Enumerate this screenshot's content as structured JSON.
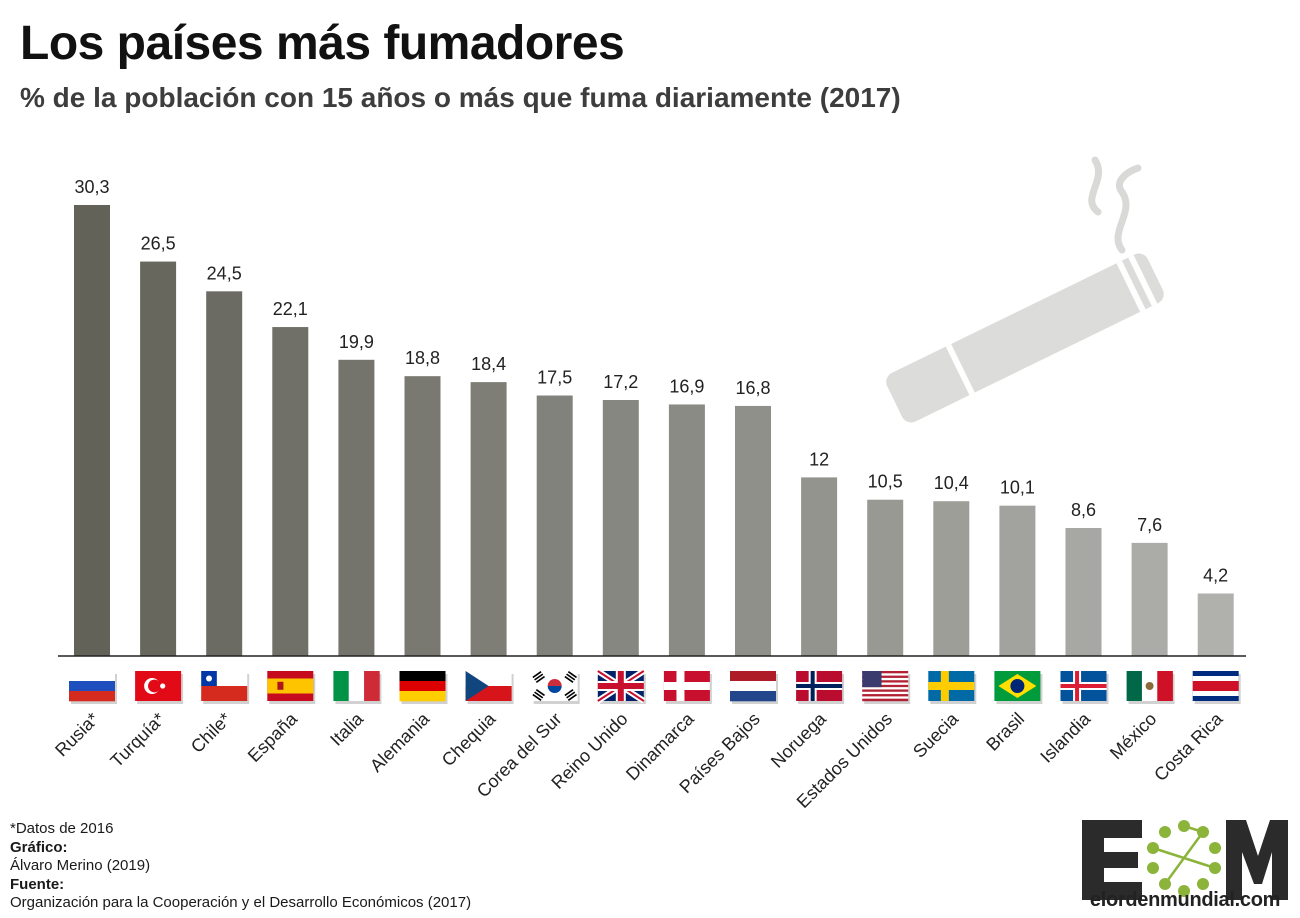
{
  "title": "Los países más fumadores",
  "subtitle": "% de la población con 15 años o más que fuma diariamente (2017)",
  "chart_data": {
    "type": "bar",
    "categories": [
      "Rusia*",
      "Turquía*",
      "Chile*",
      "España",
      "Italia",
      "Alemania",
      "Chequia",
      "Corea del Sur",
      "Reino Unido",
      "Dinamarca",
      "Países Bajos",
      "Noruega",
      "Estados Unidos",
      "Suecia",
      "Brasil",
      "Islandia",
      "México",
      "Costa Rica"
    ],
    "values": [
      30.3,
      26.5,
      24.5,
      22.1,
      19.9,
      18.8,
      18.4,
      17.5,
      17.2,
      16.9,
      16.8,
      12,
      10.5,
      10.4,
      10.1,
      8.6,
      7.6,
      4.2
    ],
    "value_labels": [
      "30,3",
      "26,5",
      "24,5",
      "22,1",
      "19,9",
      "18,8",
      "18,4",
      "17,5",
      "17,2",
      "16,9",
      "16,8",
      "12",
      "10,5",
      "10,4",
      "10,1",
      "8,6",
      "7,6",
      "4,2"
    ],
    "flags": [
      "russia-flag",
      "turkey-flag",
      "chile-flag",
      "spain-flag",
      "italy-flag",
      "germany-flag",
      "czechia-flag",
      "south-korea-flag",
      "united-kingdom-flag",
      "denmark-flag",
      "netherlands-flag",
      "norway-flag",
      "united-states-flag",
      "sweden-flag",
      "brazil-flag",
      "iceland-flag",
      "mexico-flag",
      "costa-rica-flag"
    ],
    "ylim": [
      0,
      30.3
    ],
    "grid": false,
    "legend": "none",
    "bar_color_gradient": [
      "#626259",
      "#b0b0ad"
    ]
  },
  "footer": {
    "note": "*Datos de 2016",
    "grafico_label": "Gráfico:",
    "grafico_value": "Álvaro Merino (2019)",
    "fuente_label": "Fuente:",
    "fuente_value": "Organización para la Cooperación y el Desarrollo Económicos (2017)"
  },
  "brand": {
    "logo_letters": "EOM",
    "url": "elordenmundial.com"
  },
  "decoration": "cigarette-icon"
}
